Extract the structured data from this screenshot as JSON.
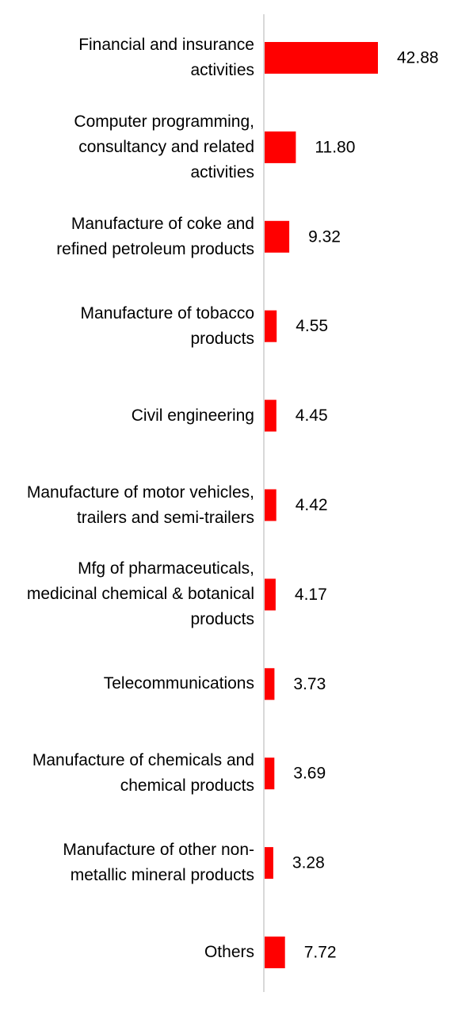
{
  "chart_data": {
    "type": "bar",
    "orientation": "horizontal",
    "categories": [
      "Financial and insurance activities",
      "Computer programming, consultancy and related activities",
      "Manufacture of coke and refined petroleum products",
      "Manufacture of tobacco products",
      "Civil engineering",
      "Manufacture of motor vehicles, trailers and semi-trailers",
      "Mfg of pharmaceuticals, medicinal chemical & botanical products",
      "Telecommunications",
      "Manufacture of chemicals and chemical products",
      "Manufacture of other non-metallic mineral products",
      "Others"
    ],
    "values": [
      42.88,
      11.8,
      9.32,
      4.55,
      4.45,
      4.42,
      4.17,
      3.73,
      3.69,
      3.28,
      7.72
    ],
    "value_labels": [
      "42.88",
      "11.80",
      "9.32",
      "4.55",
      "4.45",
      "4.42",
      "4.17",
      "3.73",
      "3.69",
      "3.28",
      "7.72"
    ],
    "title": "",
    "xlabel": "",
    "ylabel": "",
    "xlim": [
      0,
      50
    ],
    "grid": false,
    "legend": "none",
    "bar_color": "#ff0000",
    "axis_color": "#d9d9d9"
  }
}
